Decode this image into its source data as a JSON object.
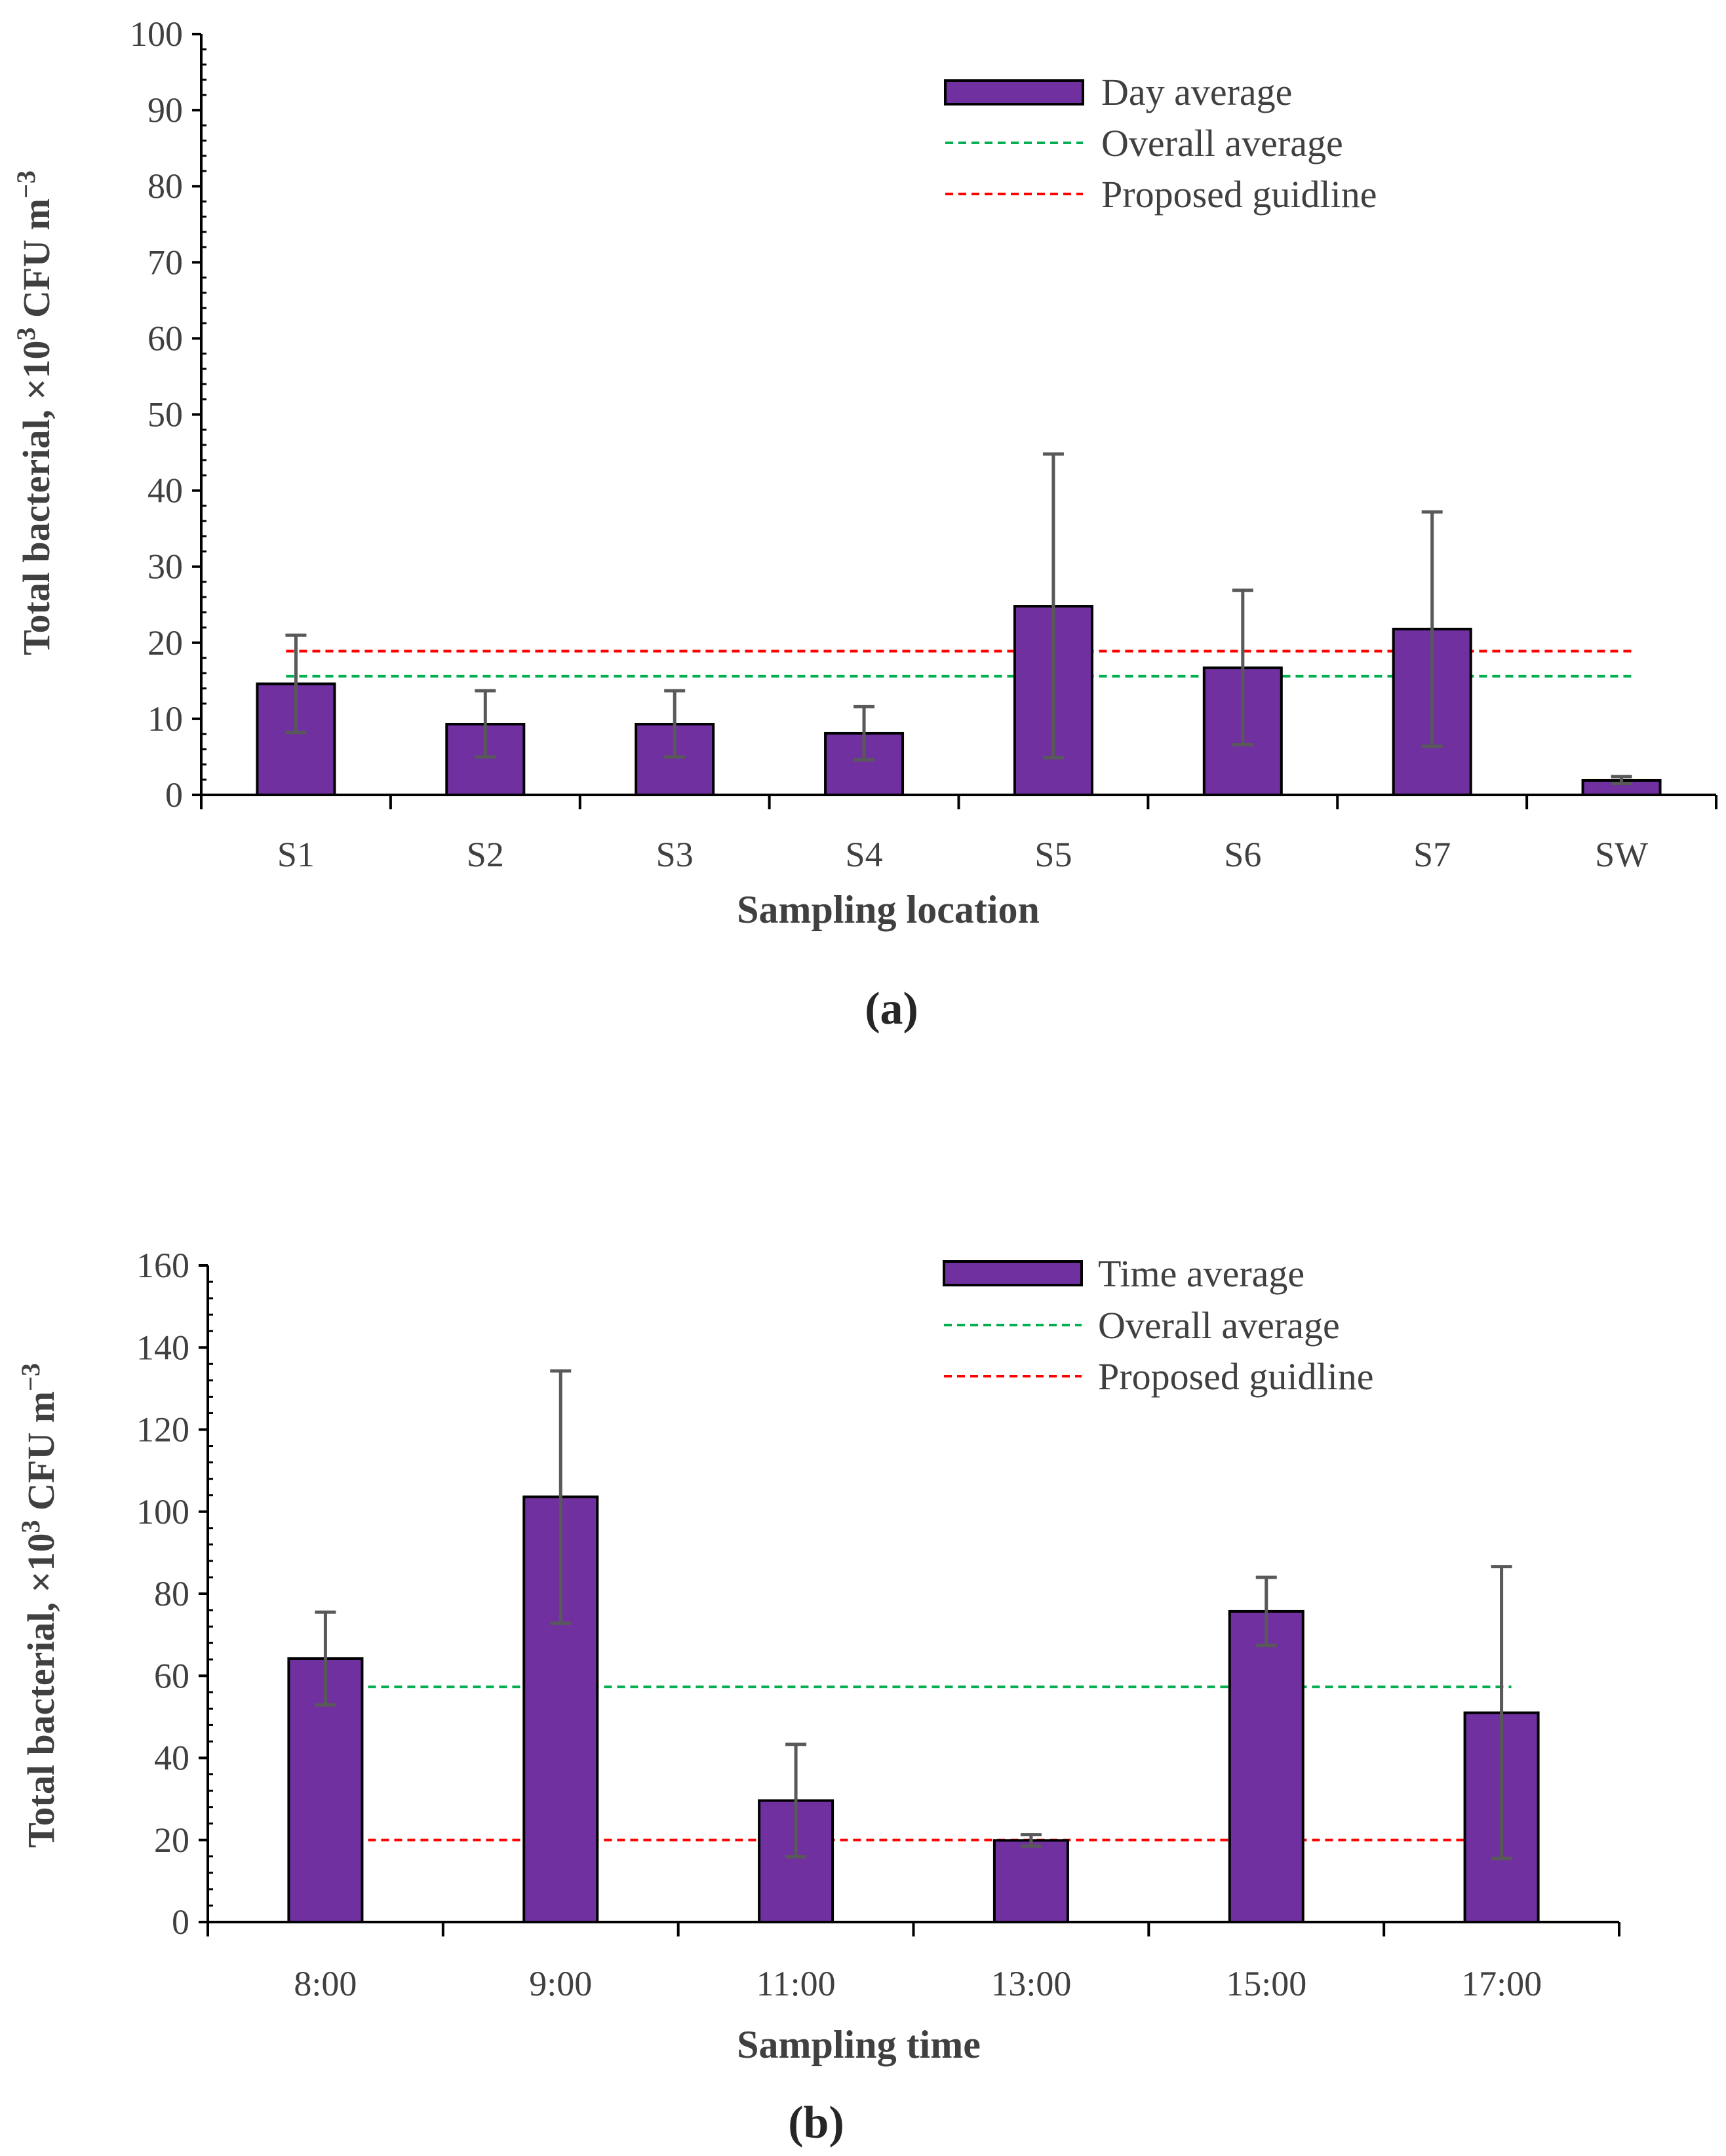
{
  "chart_data": [
    {
      "id": "a",
      "type": "bar",
      "panel_label": "(a)",
      "categories": [
        "S1",
        "S2",
        "S3",
        "S4",
        "S5",
        "S6",
        "S7",
        "SW"
      ],
      "values": [
        14.6,
        9.3,
        9.3,
        8.1,
        24.8,
        16.7,
        21.8,
        1.9
      ],
      "error_high": [
        21.0,
        13.7,
        13.7,
        11.6,
        44.8,
        26.9,
        37.2,
        2.4
      ],
      "error_low": [
        8.2,
        5.0,
        5.0,
        4.6,
        4.9,
        6.6,
        6.4,
        1.5
      ],
      "overall_average": 15.6,
      "proposed_guideline": 18.9,
      "xlabel": "Sampling location",
      "ylabel_main": "Total bacterial, ×10",
      "ylabel_sup": "3",
      "ylabel_tail": " CFU m",
      "ylabel_sup2": "−3",
      "ylim": [
        0,
        100
      ],
      "yticks": [
        "0",
        "10",
        "20",
        "30",
        "40",
        "50",
        "60",
        "70",
        "80",
        "90",
        "100"
      ],
      "legend": [
        "Day average",
        "Overall average",
        "Proposed guidline"
      ],
      "legend_position": "top-right"
    },
    {
      "id": "b",
      "type": "bar",
      "panel_label": "(b)",
      "categories": [
        "8:00",
        "9:00",
        "11:00",
        "13:00",
        "15:00",
        "17:00"
      ],
      "values": [
        64.2,
        103.6,
        29.6,
        19.9,
        75.7,
        51.0
      ],
      "error_high": [
        75.5,
        134.3,
        43.3,
        21.3,
        84.0,
        86.6
      ],
      "error_low": [
        52.9,
        72.8,
        15.9,
        18.5,
        67.4,
        15.5
      ],
      "overall_average": 57.3,
      "proposed_guideline": 20.0,
      "xlabel": "Sampling time",
      "ylabel_main": "Total bacterial, ×10",
      "ylabel_sup": "3",
      "ylabel_tail": " CFU m",
      "ylabel_sup2": "−3",
      "ylim": [
        0,
        160
      ],
      "yticks": [
        "0",
        "20",
        "40",
        "60",
        "80",
        "100",
        "120",
        "140",
        "160"
      ],
      "legend": [
        "Time average",
        "Overall average",
        "Proposed guidline"
      ],
      "legend_position": "top-right"
    }
  ],
  "colors": {
    "bar_fill": "#7030a0",
    "bar_stroke": "#000000",
    "overall_line": "#00b050",
    "guideline_line": "#ff0000",
    "error_bar": "#595959",
    "axis": "#000000"
  }
}
